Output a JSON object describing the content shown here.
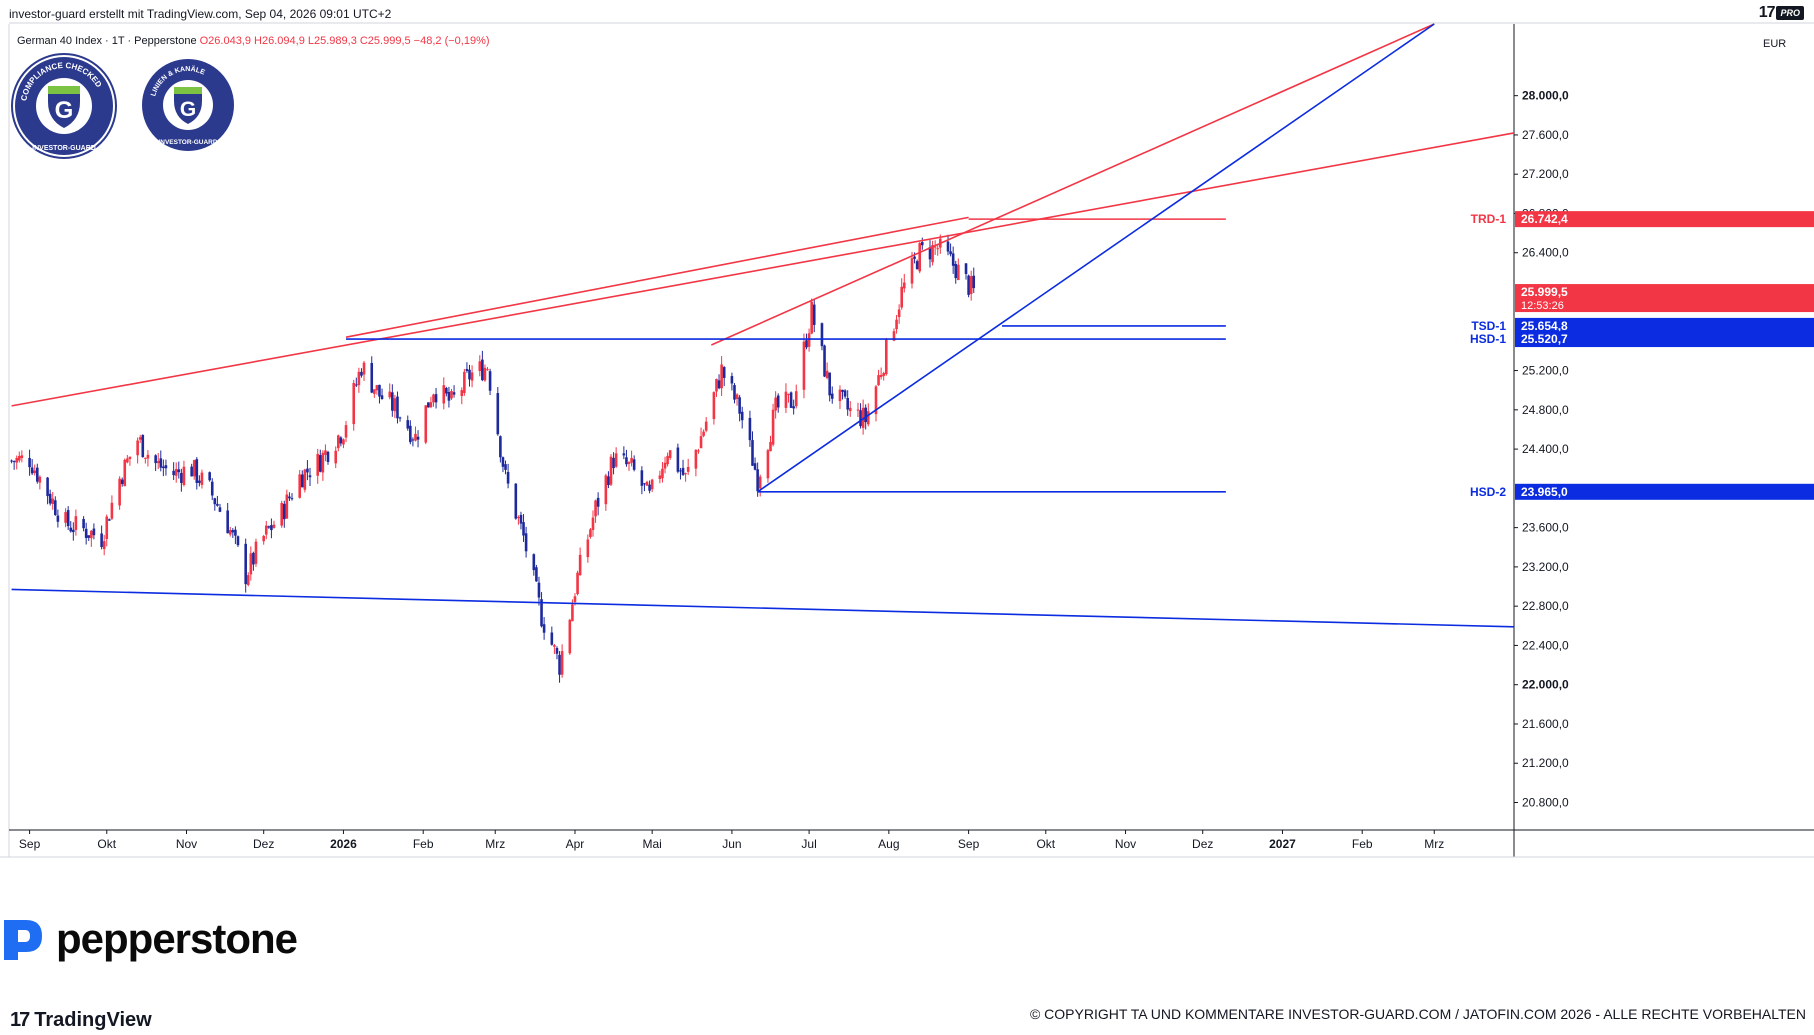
{
  "header": {
    "attribution": "investor-guard erstellt mit TradingView.com, Sep 04, 2026 09:01 UTC+2",
    "pro_badge": "PRO"
  },
  "legend": {
    "symbol": "German 40 Index · 1T · Pepperstone",
    "ohlc": "O26.043,9  H26.094,9  L25.989,3  C25.999,5  −48,2 (−0,19%)"
  },
  "currency": "EUR",
  "seals": [
    {
      "text": "COMPLIANCE CHECKED",
      "subtext": "INVESTOR-GUARD"
    },
    {
      "text": "LINIEN & KANÄLE",
      "subtext": "INVESTOR-GUARD"
    }
  ],
  "branding": {
    "pepperstone": "pepperstone",
    "tradingview": "TradingView",
    "copyright": "© COPYRIGHT TA UND KOMMENTARE INVESTOR-GUARD.COM / JATOFIN.COM 2026 - ALLE RECHTE VORBEHALTEN"
  },
  "colors": {
    "up": "#f23645",
    "down": "#1e2a9c",
    "resistance": "#f23645",
    "support": "#0b2ce0",
    "price_label_bg": "#f23645",
    "support_label_bg": "#0b2ce0"
  },
  "chart_data": {
    "type": "candlestick",
    "symbol": "German 40 Index",
    "timeframe": "1T",
    "yaxis": {
      "ticks": [
        "28.000,0",
        "27.600,0",
        "27.200,0",
        "26.800,0",
        "26.400,0",
        "25.200,0",
        "24.800,0",
        "24.400,0",
        "23.600,0",
        "23.200,0",
        "22.800,0",
        "22.400,0",
        "22.000,0",
        "21.600,0",
        "21.200,0",
        "20.800,0"
      ],
      "tick_values": [
        28000,
        27600,
        27200,
        26800,
        26400,
        25200,
        24800,
        24400,
        23600,
        23200,
        22800,
        22400,
        22000,
        21600,
        21200,
        20800
      ],
      "range": [
        20520,
        28730
      ]
    },
    "xaxis": {
      "ticks": [
        "Sep",
        "Okt",
        "Nov",
        "Dez",
        "2026",
        "Feb",
        "Mrz",
        "Apr",
        "Mai",
        "Jun",
        "Jul",
        "Aug",
        "Sep",
        "Okt",
        "Nov",
        "Dez",
        "2027",
        "Feb",
        "Mrz"
      ],
      "tick_dates": [
        "2025-09-01",
        "2025-10-01",
        "2025-11-01",
        "2025-12-01",
        "2026-01-01",
        "2026-02-01",
        "2026-03-01",
        "2026-04-01",
        "2026-05-01",
        "2026-06-01",
        "2026-07-01",
        "2026-08-01",
        "2026-09-01",
        "2026-10-01",
        "2026-11-01",
        "2026-12-01",
        "2027-01-01",
        "2027-02-01",
        "2027-03-01"
      ],
      "range": [
        "2025-08-24",
        "2027-04-01"
      ]
    },
    "price_labels": [
      {
        "name": "TRD-1",
        "value": "26.742,4",
        "y": 26742.4,
        "kind": "resistance"
      },
      {
        "name": "",
        "value": "25.999,5",
        "y": 25999.5,
        "kind": "price",
        "countdown": "12:53:26"
      },
      {
        "name": "TSD-1",
        "value": "25.654,8",
        "y": 25654.8,
        "kind": "support"
      },
      {
        "name": "HSD-1",
        "value": "25.520,7",
        "y": 25520.7,
        "kind": "support"
      },
      {
        "name": "HSD-2",
        "value": "23.965,0",
        "y": 23965.0,
        "kind": "support"
      }
    ],
    "trendlines": [
      {
        "kind": "resistance",
        "from": [
          "2025-08-25",
          24840
        ],
        "to": [
          "2027-04-01",
          27620
        ]
      },
      {
        "kind": "resistance",
        "from": [
          "2026-05-24",
          25460
        ],
        "to": [
          "2027-03-01",
          28730
        ]
      },
      {
        "kind": "resistance",
        "from": [
          "2026-01-02",
          25540
        ],
        "to": [
          "2026-09-01",
          26760
        ]
      },
      {
        "kind": "resistance",
        "from": [
          "2026-09-01",
          26742.4
        ],
        "to": [
          "2026-12-10",
          26742.4
        ],
        "label": "TRD-1"
      },
      {
        "kind": "support",
        "from": [
          "2026-06-11",
          23965
        ],
        "to": [
          "2027-03-01",
          28730
        ]
      },
      {
        "kind": "support",
        "from": [
          "2026-09-14",
          25654.8
        ],
        "to": [
          "2026-12-10",
          25654.8
        ],
        "label": "TSD-1"
      },
      {
        "kind": "support",
        "from": [
          "2026-01-02",
          25520.7
        ],
        "to": [
          "2026-12-10",
          25520.7
        ],
        "label": "HSD-1"
      },
      {
        "kind": "support",
        "from": [
          "2026-06-11",
          23965
        ],
        "to": [
          "2026-12-10",
          23965
        ],
        "label": "HSD-2"
      },
      {
        "kind": "support",
        "from": [
          "2025-08-25",
          22970
        ],
        "to": [
          "2027-04-01",
          22590
        ]
      }
    ],
    "closes": [
      [
        "2025-08-25",
        24280
      ],
      [
        "2025-09-01",
        24300
      ],
      [
        "2025-09-08",
        23960
      ],
      [
        "2025-09-15",
        23640
      ],
      [
        "2025-09-22",
        23580
      ],
      [
        "2025-09-29",
        23500
      ],
      [
        "2025-10-06",
        24100
      ],
      [
        "2025-10-13",
        24500
      ],
      [
        "2025-10-20",
        24250
      ],
      [
        "2025-10-27",
        24150
      ],
      [
        "2025-11-03",
        24200
      ],
      [
        "2025-11-10",
        23980
      ],
      [
        "2025-11-17",
        23640
      ],
      [
        "2025-11-24",
        23120
      ],
      [
        "2025-12-01",
        23500
      ],
      [
        "2025-12-08",
        23750
      ],
      [
        "2025-12-15",
        24120
      ],
      [
        "2025-12-22",
        24260
      ],
      [
        "2026-01-01",
        24600
      ],
      [
        "2026-01-08",
        25250
      ],
      [
        "2026-01-15",
        24950
      ],
      [
        "2026-01-22",
        24800
      ],
      [
        "2026-01-29",
        24520
      ],
      [
        "2026-02-05",
        25020
      ],
      [
        "2026-02-12",
        24870
      ],
      [
        "2026-02-19",
        25150
      ],
      [
        "2026-02-26",
        25250
      ],
      [
        "2026-03-05",
        24100
      ],
      [
        "2026-03-12",
        23500
      ],
      [
        "2026-03-19",
        22700
      ],
      [
        "2026-03-26",
        22200
      ],
      [
        "2026-04-02",
        23100
      ],
      [
        "2026-04-09",
        23800
      ],
      [
        "2026-04-16",
        24300
      ],
      [
        "2026-04-23",
        24200
      ],
      [
        "2026-04-30",
        23900
      ],
      [
        "2026-05-07",
        24400
      ],
      [
        "2026-05-14",
        24100
      ],
      [
        "2026-05-21",
        24600
      ],
      [
        "2026-05-28",
        25200
      ],
      [
        "2026-06-04",
        24800
      ],
      [
        "2026-06-11",
        24100
      ],
      [
        "2026-06-18",
        24800
      ],
      [
        "2026-06-25",
        24900
      ],
      [
        "2026-07-02",
        25800
      ],
      [
        "2026-07-09",
        25000
      ],
      [
        "2026-07-16",
        24800
      ],
      [
        "2026-07-23",
        24700
      ],
      [
        "2026-07-30",
        25300
      ],
      [
        "2026-08-06",
        26000
      ],
      [
        "2026-08-13",
        26400
      ],
      [
        "2026-08-20",
        26450
      ],
      [
        "2026-08-27",
        26250
      ],
      [
        "2026-09-03",
        25999.5
      ]
    ]
  }
}
